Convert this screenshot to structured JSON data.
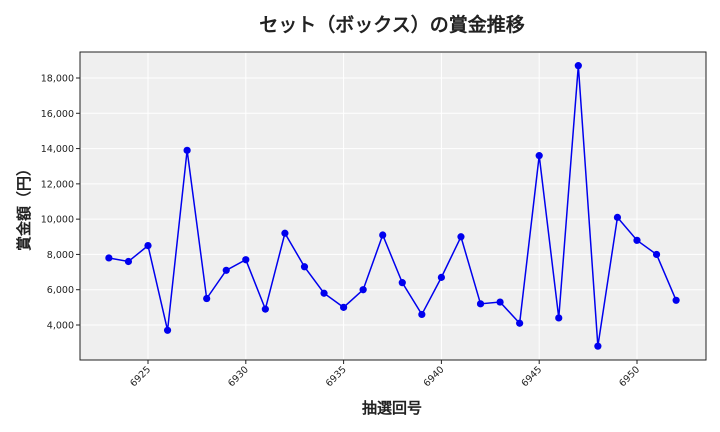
{
  "chart_data": {
    "type": "line",
    "title": "セット（ボックス）の賞金推移",
    "xlabel": "抽選回号",
    "ylabel": "賞金額（円）",
    "x": [
      6923,
      6924,
      6925,
      6926,
      6927,
      6928,
      6929,
      6930,
      6931,
      6932,
      6933,
      6934,
      6935,
      6936,
      6937,
      6938,
      6939,
      6940,
      6941,
      6942,
      6943,
      6944,
      6945,
      6946,
      6947,
      6948,
      6949,
      6950,
      6951,
      6952
    ],
    "series": [
      {
        "name": "賞金額",
        "color": "#0000ee",
        "values": [
          7800,
          7600,
          8500,
          3700,
          13900,
          5500,
          7100,
          7700,
          4900,
          9200,
          7300,
          5800,
          5000,
          6000,
          9100,
          6400,
          4600,
          6700,
          9000,
          5200,
          5300,
          4100,
          13600,
          4400,
          18700,
          2800,
          10100,
          8800,
          8000,
          5400
        ]
      }
    ],
    "xticks": [
      6925,
      6930,
      6935,
      6940,
      6945,
      6950
    ],
    "yticks": [
      4000,
      6000,
      8000,
      10000,
      12000,
      14000,
      16000,
      18000
    ],
    "ytick_labels": [
      "4,000",
      "6,000",
      "8,000",
      "10,000",
      "12,000",
      "14,000",
      "16,000",
      "18,000"
    ],
    "xlim": [
      6921.5,
      6953.5
    ],
    "ylim": [
      2000,
      19500
    ],
    "grid": true
  }
}
